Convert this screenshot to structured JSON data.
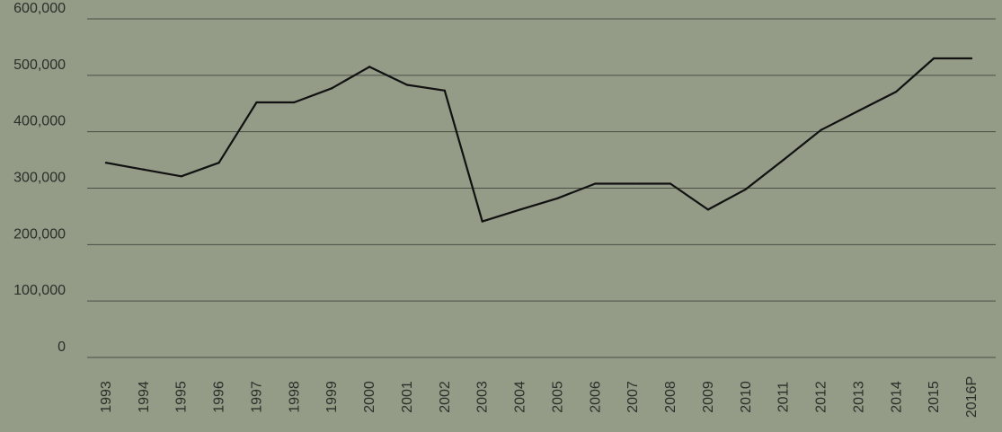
{
  "colors": {
    "background": "#949b87",
    "line": "#111111",
    "grid": "#4a4f45",
    "text": "#2b2f2a"
  },
  "chart_data": {
    "type": "line",
    "title": "",
    "xlabel": "",
    "ylabel": "",
    "grid": true,
    "legend": "none",
    "ylim": [
      0,
      600000
    ],
    "y_ticks": [
      0,
      100000,
      200000,
      300000,
      400000,
      500000,
      600000
    ],
    "y_tick_labels": [
      "0",
      "100,000",
      "200,000",
      "300,000",
      "400,000",
      "500,000",
      "600,000"
    ],
    "categories": [
      "1993",
      "1994",
      "1995",
      "1996",
      "1997",
      "1998",
      "1999",
      "2000",
      "2001",
      "2002",
      "2003",
      "2004",
      "2005",
      "2006",
      "2007",
      "2008",
      "2009",
      "2010",
      "2011",
      "2012",
      "2013",
      "2014",
      "2015",
      "2016P"
    ],
    "series": [
      {
        "values": [
          345000,
          333000,
          321000,
          345000,
          452000,
          452000,
          477000,
          515000,
          483000,
          473000,
          241000,
          262000,
          282000,
          308000,
          308000,
          308000,
          262000,
          298000,
          350000,
          403000,
          437000,
          471000,
          530000,
          530000
        ]
      }
    ]
  }
}
